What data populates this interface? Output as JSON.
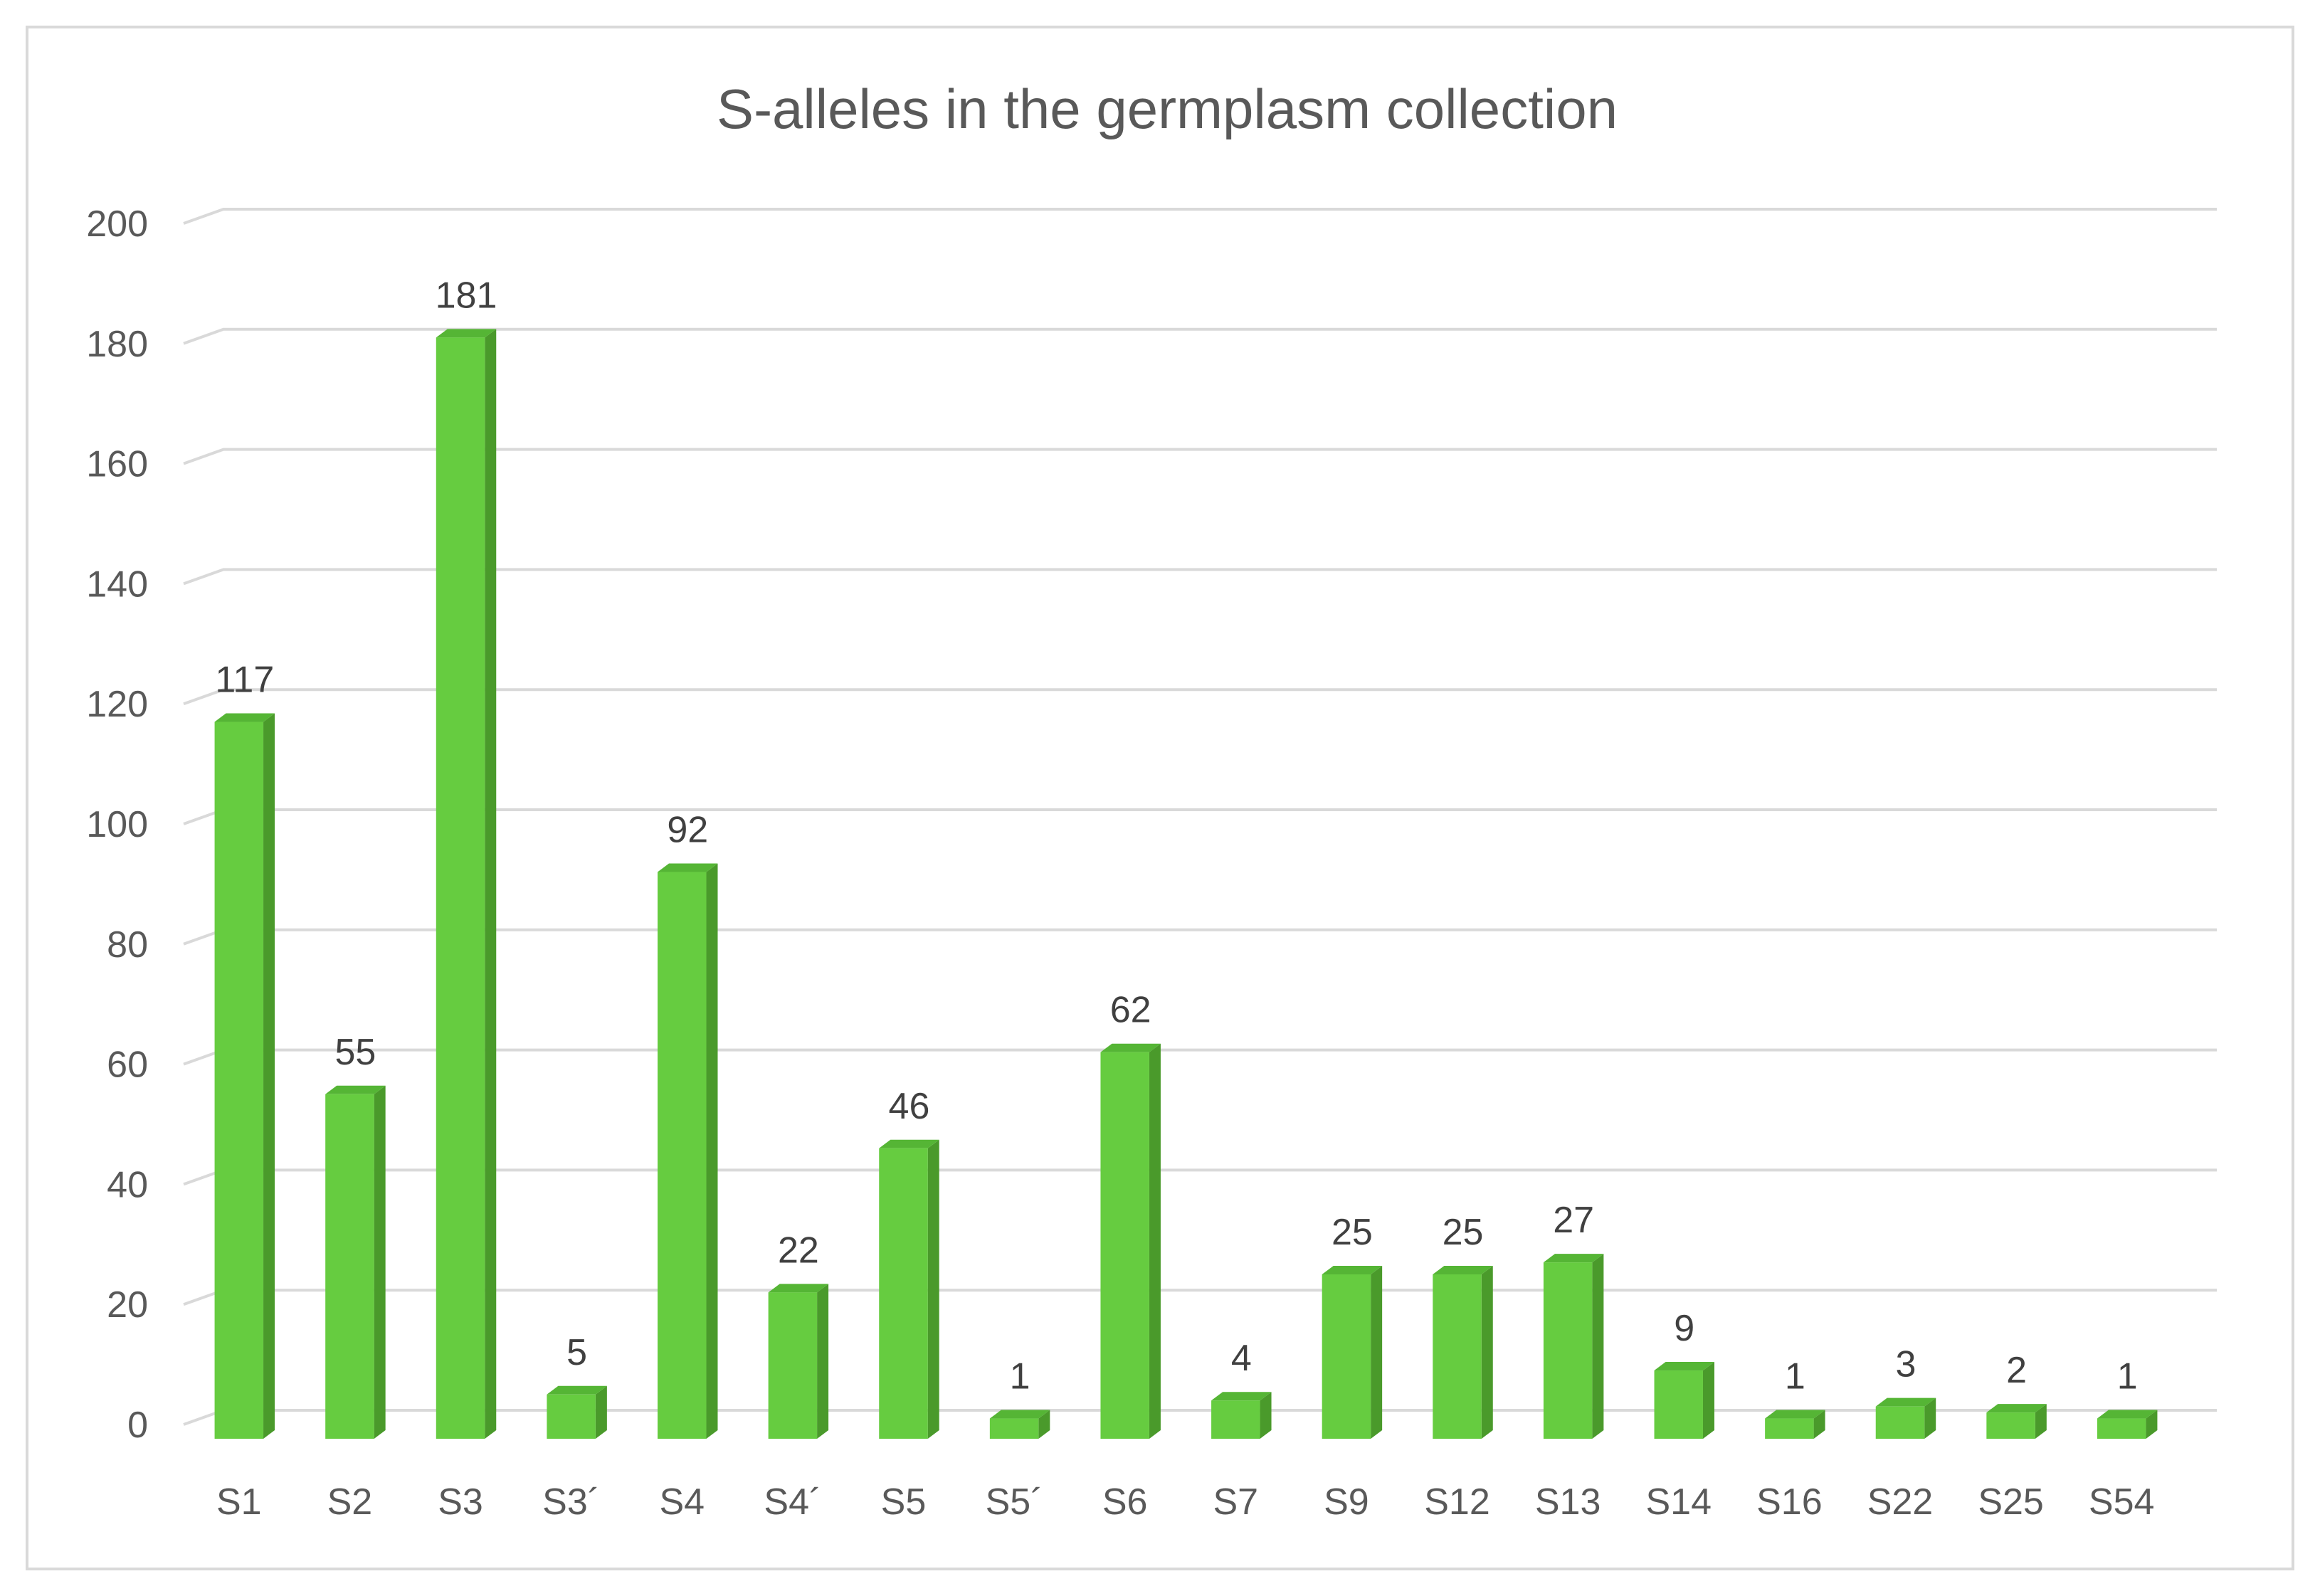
{
  "chart_data": {
    "type": "bar",
    "title": "S-alleles in the germplasm collection",
    "xlabel": "",
    "ylabel": "",
    "categories": [
      "S1",
      "S2",
      "S3",
      "S3´",
      "S4",
      "S4´",
      "S5",
      "S5´",
      "S6",
      "S7",
      "S9",
      "S12",
      "S13",
      "S14",
      "S16",
      "S22",
      "S25",
      "S54"
    ],
    "values": [
      117,
      55,
      181,
      5,
      92,
      22,
      46,
      1,
      62,
      4,
      25,
      25,
      27,
      9,
      1,
      3,
      2,
      1
    ],
    "ylim": [
      0,
      200
    ],
    "yticks": [
      0,
      20,
      40,
      60,
      80,
      100,
      120,
      140,
      160,
      180,
      200
    ],
    "grid": true,
    "legend": "none",
    "data_labels": true,
    "style": "3d-column",
    "colors": {
      "bar_front": "#66cc40",
      "bar_side": "#4a9a2b",
      "bar_top": "#55b535",
      "gridline": "#d9d9d9",
      "text": "#595959"
    }
  }
}
